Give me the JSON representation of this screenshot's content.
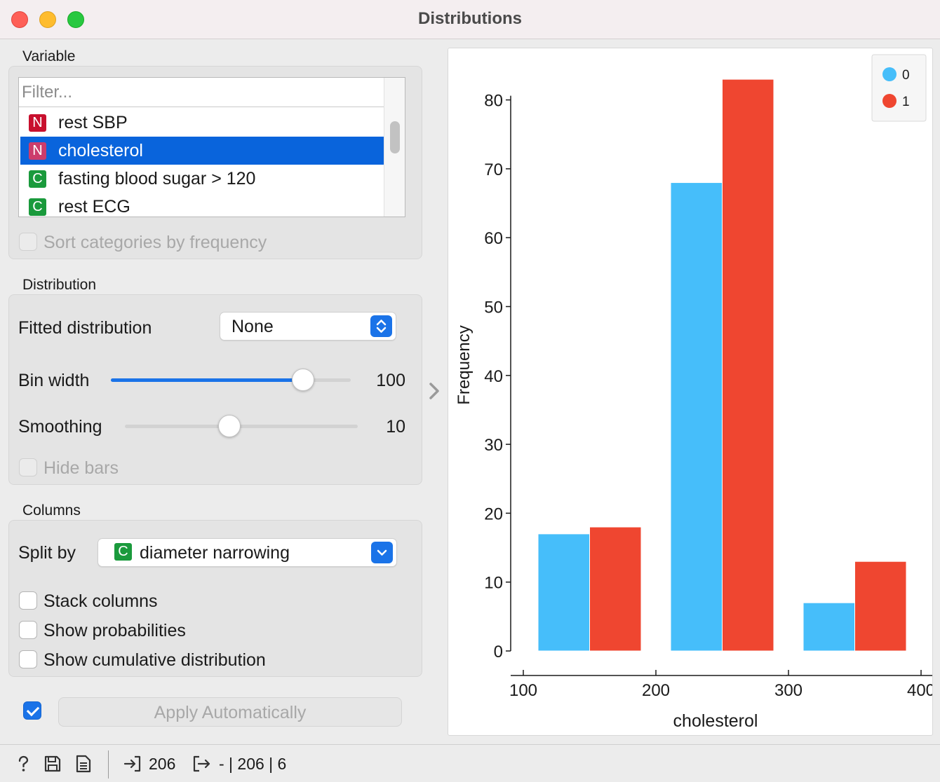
{
  "window": {
    "title": "Distributions"
  },
  "variable_section": {
    "label": "Variable",
    "filter_placeholder": "Filter...",
    "items": [
      {
        "type": "N",
        "label": "rest SBP",
        "selected": false
      },
      {
        "type": "N",
        "label": "cholesterol",
        "selected": true
      },
      {
        "type": "C",
        "label": "fasting blood sugar > 120",
        "selected": false
      },
      {
        "type": "C",
        "label": "rest ECG",
        "selected": false
      }
    ],
    "sort_label": "Sort categories by frequency",
    "sort_checked": false
  },
  "distribution_section": {
    "label": "Distribution",
    "fitted_label": "Fitted distribution",
    "fitted_value": "None",
    "bin_width_label": "Bin width",
    "bin_width_value": "100",
    "bin_width_fraction": 0.8,
    "smoothing_label": "Smoothing",
    "smoothing_value": "10",
    "smoothing_fraction": 0.45,
    "hide_bars_label": "Hide bars",
    "hide_bars_checked": false
  },
  "columns_section": {
    "label": "Columns",
    "split_by_label": "Split by",
    "split_by_type": "C",
    "split_by_value": "diameter narrowing",
    "stack_label": "Stack columns",
    "stack_checked": false,
    "probabilities_label": "Show probabilities",
    "probabilities_checked": false,
    "cumulative_label": "Show cumulative distribution",
    "cumulative_checked": false
  },
  "apply": {
    "checked": true,
    "label": "Apply Automatically"
  },
  "status": {
    "input_count": "206",
    "output_text": "- | 206 | 6"
  },
  "icons": {
    "help": "question-mark-icon",
    "save": "floppy-disk-icon",
    "report": "document-icon",
    "input": "input-arrow-icon",
    "output": "output-arrow-icon",
    "splitter": "chevron-right-icon"
  },
  "colors": {
    "accent": "#1a73e8",
    "series_0": "#46befa",
    "series_1": "#ef4630",
    "selection": "#0964dc"
  },
  "chart_data": {
    "type": "bar",
    "xlabel": "cholesterol",
    "ylabel": "Frequency",
    "x_ticks": [
      100,
      200,
      300,
      400
    ],
    "y_ticks": [
      0,
      10,
      20,
      30,
      40,
      50,
      60,
      70,
      80
    ],
    "xlim": [
      100,
      400
    ],
    "ylim": [
      0,
      80
    ],
    "bins": [
      {
        "start": 100,
        "end": 200
      },
      {
        "start": 200,
        "end": 300
      },
      {
        "start": 300,
        "end": 400
      }
    ],
    "series": [
      {
        "name": "0",
        "color": "#46befa",
        "values": [
          17,
          68,
          7
        ]
      },
      {
        "name": "1",
        "color": "#ef4630",
        "values": [
          18,
          83,
          13
        ]
      }
    ],
    "legend_position": "top-right",
    "grid": false
  }
}
